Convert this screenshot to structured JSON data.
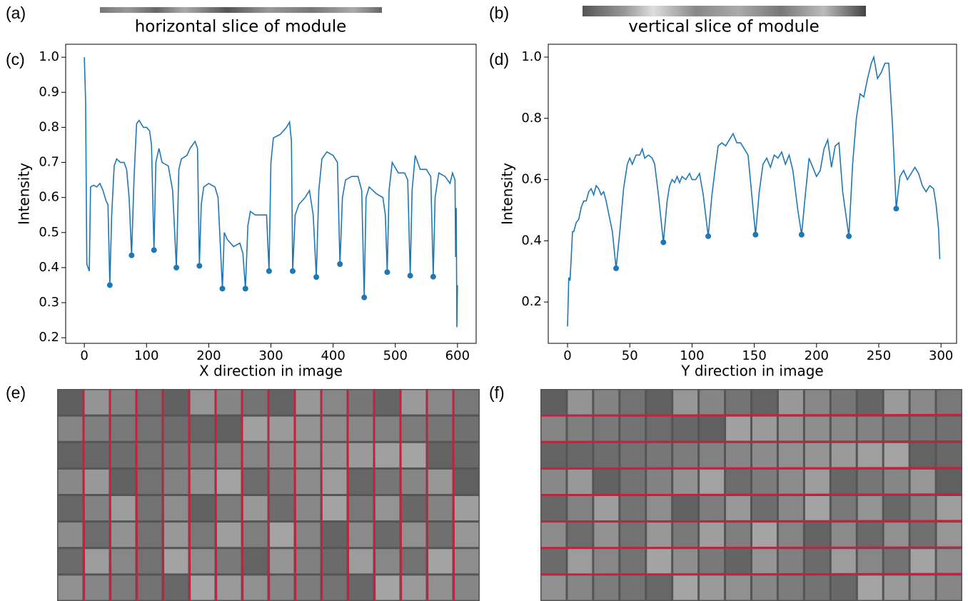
{
  "panel_labels": [
    "(a)",
    "(b)",
    "(c)",
    "(d)",
    "(e)",
    "(f)"
  ],
  "slice_captions": [
    "horizontal slice of module",
    "vertical slice of module"
  ],
  "chart_data": [
    {
      "type": "line",
      "color": "#1f77b4",
      "xlabel": "X direction in image",
      "ylabel": "Intensity",
      "xlim": [
        -30,
        630
      ],
      "ylim": [
        0.184,
        1.037
      ],
      "xticks": [
        0,
        100,
        200,
        300,
        400,
        500,
        600
      ],
      "yticks": [
        0.2,
        0.3,
        0.4,
        0.5,
        0.6,
        0.7,
        0.8,
        0.9,
        {
          "value": 1,
          "label": "1.0"
        }
      ],
      "x": [
        0,
        2,
        4,
        6,
        8,
        10,
        15,
        20,
        25,
        30,
        35,
        38,
        41,
        44,
        48,
        52,
        58,
        64,
        68,
        72,
        76,
        80,
        84,
        88,
        95,
        100,
        105,
        108,
        112,
        115,
        120,
        125,
        135,
        142,
        148,
        152,
        156,
        165,
        170,
        178,
        182,
        185,
        188,
        192,
        200,
        210,
        215,
        222,
        225,
        230,
        240,
        250,
        255,
        259,
        263,
        267,
        275,
        285,
        293,
        297,
        300,
        304,
        315,
        325,
        330,
        333,
        335,
        339,
        345,
        355,
        362,
        368,
        373,
        377,
        382,
        390,
        400,
        407,
        411,
        415,
        420,
        430,
        440,
        446,
        450,
        453,
        458,
        470,
        480,
        484,
        487,
        490,
        495,
        505,
        515,
        520,
        524,
        527,
        532,
        540,
        550,
        557,
        561,
        564,
        570,
        580,
        588,
        592,
        596,
        597,
        598,
        599,
        600
      ],
      "values": [
        1.0,
        0.88,
        0.41,
        0.4,
        0.39,
        0.63,
        0.635,
        0.63,
        0.64,
        0.62,
        0.59,
        0.58,
        0.35,
        0.55,
        0.69,
        0.71,
        0.7,
        0.7,
        0.68,
        0.6,
        0.435,
        0.66,
        0.81,
        0.82,
        0.8,
        0.8,
        0.79,
        0.75,
        0.45,
        0.7,
        0.74,
        0.7,
        0.69,
        0.62,
        0.4,
        0.68,
        0.71,
        0.72,
        0.74,
        0.76,
        0.74,
        0.405,
        0.58,
        0.63,
        0.64,
        0.63,
        0.6,
        0.34,
        0.5,
        0.48,
        0.46,
        0.47,
        0.44,
        0.34,
        0.52,
        0.56,
        0.55,
        0.55,
        0.55,
        0.39,
        0.7,
        0.77,
        0.78,
        0.8,
        0.815,
        0.76,
        0.39,
        0.55,
        0.58,
        0.6,
        0.62,
        0.55,
        0.373,
        0.62,
        0.71,
        0.73,
        0.72,
        0.7,
        0.41,
        0.6,
        0.65,
        0.66,
        0.66,
        0.62,
        0.315,
        0.6,
        0.63,
        0.61,
        0.6,
        0.55,
        0.387,
        0.62,
        0.7,
        0.67,
        0.67,
        0.65,
        0.377,
        0.62,
        0.72,
        0.68,
        0.68,
        0.66,
        0.374,
        0.6,
        0.67,
        0.66,
        0.64,
        0.67,
        0.65,
        0.43,
        0.57,
        0.23,
        0.35
      ],
      "markers": {
        "x": [
          41,
          76,
          112,
          148,
          185,
          222,
          259,
          297,
          335,
          373,
          411,
          450,
          487,
          524,
          561
        ],
        "values": [
          0.35,
          0.435,
          0.45,
          0.4,
          0.405,
          0.34,
          0.34,
          0.39,
          0.39,
          0.373,
          0.41,
          0.315,
          0.387,
          0.377,
          0.374
        ]
      }
    },
    {
      "type": "line",
      "color": "#1f77b4",
      "xlabel": "Y direction in image",
      "ylabel": "Intensity",
      "xlim": [
        -15.5,
        312.5
      ],
      "ylim": [
        0.065,
        1.042
      ],
      "xticks": [
        0,
        50,
        100,
        150,
        200,
        250,
        300
      ],
      "yticks": [
        0.2,
        0.4,
        0.6,
        0.8,
        {
          "value": 1,
          "label": "1.0"
        }
      ],
      "x": [
        0,
        1,
        2,
        3,
        4,
        5,
        7,
        9,
        11,
        13,
        15,
        17,
        19,
        21,
        23,
        25,
        27,
        29,
        31,
        33,
        36,
        39,
        42,
        45,
        48,
        50,
        52,
        55,
        58,
        60,
        62,
        65,
        68,
        70,
        73,
        77,
        80,
        82,
        84,
        86,
        88,
        90,
        92,
        95,
        98,
        100,
        103,
        106,
        109,
        113,
        116,
        119,
        121,
        124,
        127,
        130,
        133,
        136,
        139,
        142,
        145,
        148,
        151,
        154,
        157,
        160,
        163,
        166,
        169,
        172,
        175,
        178,
        181,
        185,
        188,
        191,
        194,
        197,
        200,
        203,
        206,
        209,
        212,
        215,
        218,
        221,
        226,
        229,
        232,
        235,
        238,
        241,
        244,
        246,
        249,
        252,
        255,
        258,
        261,
        264,
        267,
        270,
        273,
        276,
        279,
        282,
        285,
        288,
        291,
        294,
        296,
        298,
        299
      ],
      "values": [
        0.12,
        0.28,
        0.27,
        0.35,
        0.43,
        0.43,
        0.46,
        0.47,
        0.51,
        0.53,
        0.53,
        0.56,
        0.57,
        0.55,
        0.58,
        0.57,
        0.55,
        0.56,
        0.53,
        0.49,
        0.43,
        0.31,
        0.43,
        0.57,
        0.65,
        0.67,
        0.65,
        0.68,
        0.68,
        0.7,
        0.67,
        0.68,
        0.67,
        0.65,
        0.55,
        0.395,
        0.53,
        0.58,
        0.6,
        0.59,
        0.61,
        0.59,
        0.61,
        0.6,
        0.62,
        0.6,
        0.6,
        0.62,
        0.55,
        0.415,
        0.55,
        0.65,
        0.71,
        0.72,
        0.71,
        0.73,
        0.75,
        0.72,
        0.72,
        0.7,
        0.68,
        0.55,
        0.42,
        0.56,
        0.65,
        0.67,
        0.64,
        0.68,
        0.67,
        0.69,
        0.65,
        0.68,
        0.63,
        0.5,
        0.42,
        0.55,
        0.67,
        0.64,
        0.61,
        0.63,
        0.7,
        0.73,
        0.64,
        0.71,
        0.72,
        0.56,
        0.415,
        0.65,
        0.8,
        0.88,
        0.87,
        0.93,
        0.98,
        1.0,
        0.93,
        0.95,
        0.98,
        0.98,
        0.78,
        0.505,
        0.61,
        0.63,
        0.6,
        0.62,
        0.64,
        0.62,
        0.58,
        0.56,
        0.58,
        0.57,
        0.52,
        0.44,
        0.34
      ],
      "markers": {
        "x": [
          39,
          77,
          113,
          151,
          188,
          226,
          264
        ],
        "values": [
          0.31,
          0.395,
          0.415,
          0.42,
          0.42,
          0.415,
          0.505
        ]
      }
    }
  ]
}
